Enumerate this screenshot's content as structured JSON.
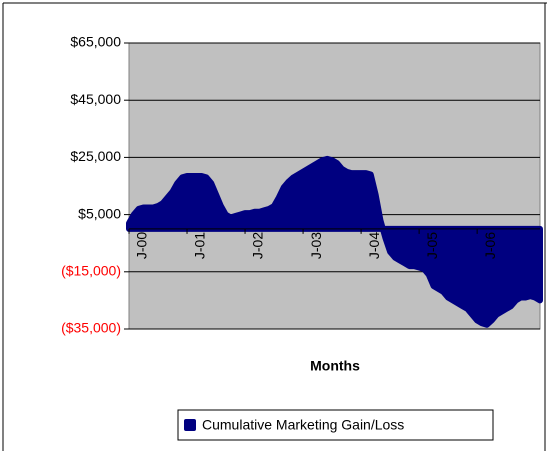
{
  "chart_data": {
    "type": "area",
    "x_label": "Months",
    "categories": [
      "J-00",
      null,
      null,
      null,
      null,
      null,
      null,
      null,
      null,
      null,
      null,
      null,
      "J-01",
      null,
      null,
      null,
      null,
      null,
      null,
      null,
      null,
      null,
      null,
      null,
      "J-02",
      null,
      null,
      null,
      null,
      null,
      null,
      null,
      null,
      null,
      null,
      null,
      "J-03",
      null,
      null,
      null,
      null,
      null,
      null,
      null,
      null,
      null,
      null,
      null,
      "J-04",
      null,
      null,
      null,
      null,
      null,
      null,
      null,
      null,
      null,
      null,
      null,
      "J-05",
      null,
      null,
      null,
      null,
      null,
      null,
      null,
      null,
      null,
      null,
      null,
      "J-06",
      null,
      null,
      null,
      null,
      null,
      null,
      null,
      null,
      null,
      null,
      null,
      null,
      null
    ],
    "series": [
      {
        "name": "Cumulative Marketing Gain/Loss",
        "color": "#000080",
        "values": [
          2000,
          5000,
          7000,
          7500,
          7500,
          7500,
          8000,
          9000,
          11000,
          13000,
          16000,
          18000,
          18500,
          18500,
          18500,
          18500,
          18000,
          16000,
          12000,
          8000,
          5000,
          4000,
          4500,
          5000,
          5500,
          5500,
          6000,
          6000,
          6500,
          7000,
          8000,
          11000,
          14500,
          16500,
          18000,
          19000,
          20000,
          21000,
          22000,
          23000,
          24000,
          24500,
          24000,
          23000,
          21000,
          20000,
          19500,
          19500,
          19500,
          19500,
          19000,
          12000,
          3000,
          -3000,
          -8000,
          -10000,
          -11000,
          -12000,
          -13000,
          -13000,
          -13500,
          -14000,
          -16000,
          -20000,
          -21000,
          -22000,
          -24000,
          -25000,
          -26000,
          -27000,
          -28000,
          -30000,
          -32000,
          -33000,
          -33500,
          -32000,
          -30000,
          -29000,
          -28000,
          -27000,
          -25000,
          -24000,
          -24000,
          -23500,
          -24000,
          -25000
        ]
      }
    ],
    "ylim": [
      -35000,
      65000
    ],
    "yticks": [
      {
        "value": -35000,
        "label": "($35,000)"
      },
      {
        "value": -15000,
        "label": "($15,000)"
      },
      {
        "value": 5000,
        "label": "$5,000"
      },
      {
        "value": 25000,
        "label": "$25,000"
      },
      {
        "value": 45000,
        "label": "$45,000"
      },
      {
        "value": 65000,
        "label": "$65,000"
      }
    ],
    "grid": true,
    "plot_background": "#c0c0c0",
    "negative_label_color": "#ff0000",
    "legend": "bottom"
  }
}
